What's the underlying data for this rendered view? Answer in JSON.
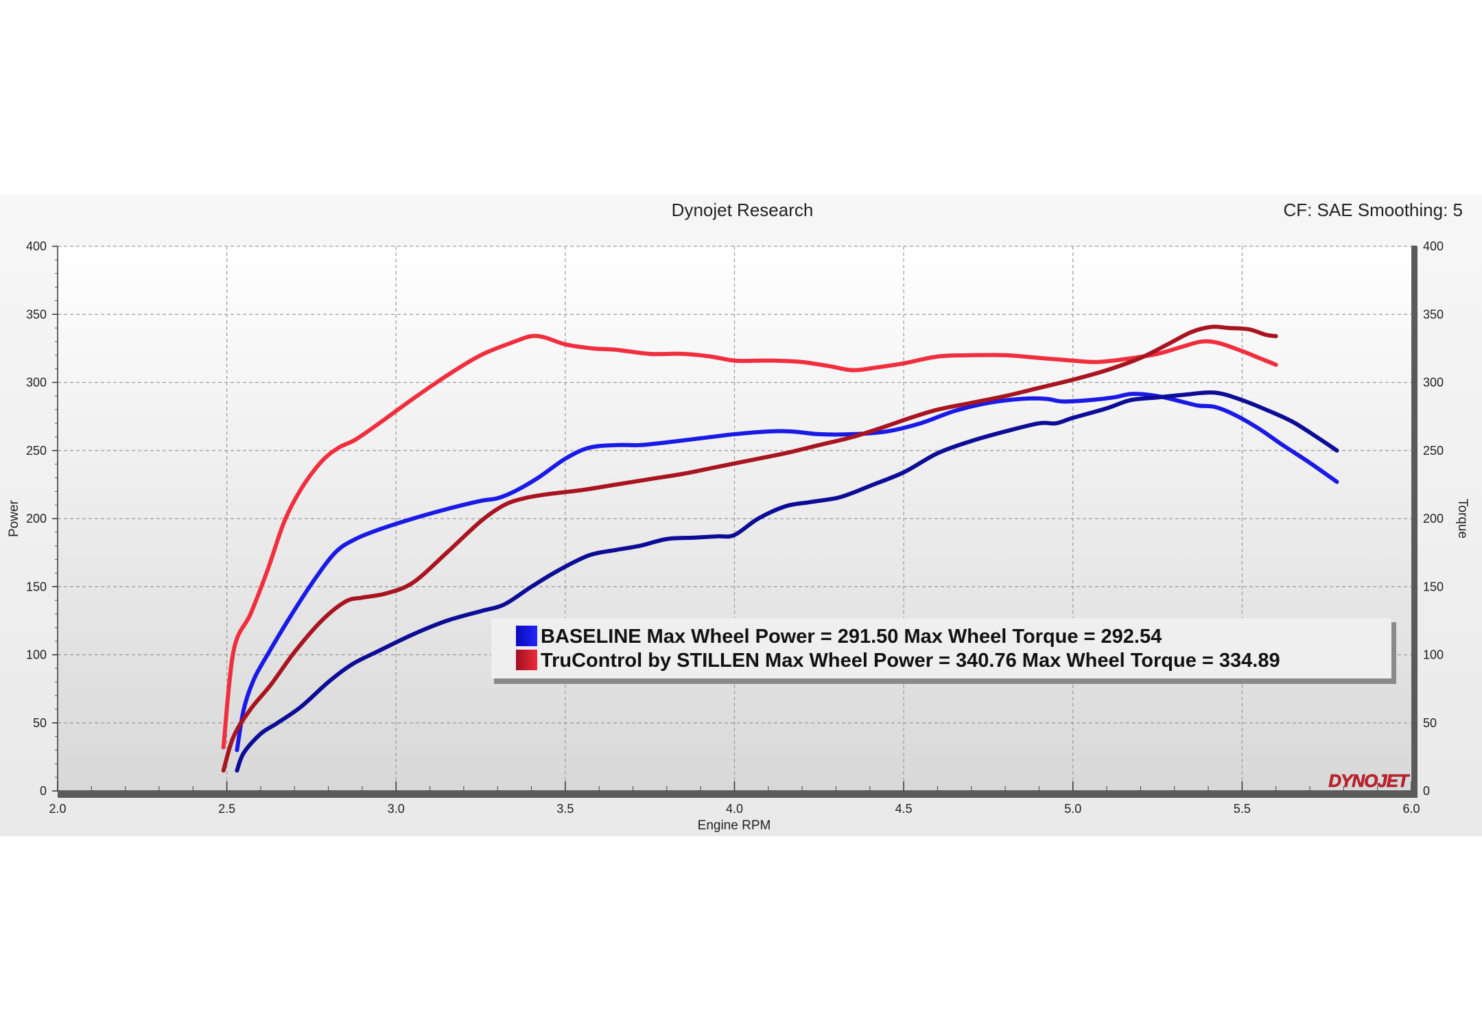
{
  "header": {
    "title": "Dynojet Research",
    "settings": "CF: SAE Smoothing: 5"
  },
  "watermark": "DYNOJET",
  "chart_data": {
    "type": "line",
    "title": "Dynojet Research",
    "xlabel": "Engine RPM",
    "ylabel_left": "Power",
    "ylabel_right": "Torque",
    "xlim": [
      2.0,
      6.0
    ],
    "ylim": [
      0,
      400
    ],
    "xticks": [
      "2.0",
      "2.5",
      "3.0",
      "3.5",
      "4.0",
      "4.5",
      "5.0",
      "5.5",
      "6.0"
    ],
    "yticks": [
      "0",
      "50",
      "100",
      "150",
      "200",
      "250",
      "300",
      "350",
      "400"
    ],
    "grid": true,
    "legend_position": "bottom-right",
    "legend": [
      {
        "text": "BASELINE Max Wheel Power = 291.50 Max Wheel Torque = 292.54",
        "colors": [
          "#0a0ab8",
          "#1f1fff"
        ]
      },
      {
        "text": "TruControl by STILLEN Max Wheel Power = 340.76 Max Wheel Torque = 334.89",
        "colors": [
          "#a01020",
          "#ee2a3c"
        ]
      }
    ],
    "series": [
      {
        "color": "#1a1ae6",
        "x": [
          2.53,
          2.55,
          2.58,
          2.62,
          2.68,
          2.75,
          2.82,
          2.88,
          2.95,
          3.05,
          3.15,
          3.25,
          3.3,
          3.35,
          3.42,
          3.5,
          3.57,
          3.65,
          3.72,
          3.8,
          3.9,
          4.0,
          4.1,
          4.17,
          4.25,
          4.35,
          4.45,
          4.55,
          4.65,
          4.75,
          4.85,
          4.92,
          4.97,
          5.05,
          5.12,
          5.17,
          5.22,
          5.27,
          5.32,
          5.37,
          5.42,
          5.48,
          5.55,
          5.62,
          5.7,
          5.78
        ],
        "values": [
          30,
          60,
          82,
          100,
          125,
          152,
          175,
          185,
          192,
          200,
          207,
          213,
          215,
          220,
          230,
          244,
          252,
          254,
          254,
          256,
          259,
          262,
          264,
          264,
          262,
          262,
          264,
          270,
          279,
          285,
          288,
          288,
          286,
          287,
          289,
          291.5,
          291,
          289,
          286,
          283,
          282,
          276,
          266,
          254,
          241,
          227
        ]
      },
      {
        "color": "#0c0c96",
        "x": [
          2.53,
          2.55,
          2.6,
          2.65,
          2.72,
          2.8,
          2.87,
          2.95,
          3.05,
          3.15,
          3.25,
          3.32,
          3.4,
          3.48,
          3.57,
          3.65,
          3.72,
          3.8,
          3.88,
          3.95,
          4.0,
          4.07,
          4.15,
          4.22,
          4.3,
          4.35,
          4.4,
          4.5,
          4.6,
          4.7,
          4.8,
          4.9,
          4.95,
          5.0,
          5.1,
          5.17,
          5.25,
          5.33,
          5.42,
          5.5,
          5.58,
          5.65,
          5.72,
          5.78
        ],
        "values": [
          15,
          28,
          42,
          50,
          62,
          80,
          93,
          103,
          115,
          125,
          132,
          137,
          150,
          162,
          173,
          177,
          180,
          185,
          186,
          187,
          188,
          200,
          209,
          212,
          215,
          219,
          224,
          234,
          248,
          257,
          264,
          270,
          270,
          274,
          281,
          287,
          289,
          291,
          292.5,
          287,
          279,
          271,
          260,
          250
        ]
      },
      {
        "color": "#f02e3e",
        "x": [
          2.49,
          2.52,
          2.57,
          2.62,
          2.67,
          2.72,
          2.78,
          2.83,
          2.88,
          2.95,
          3.05,
          3.15,
          3.25,
          3.35,
          3.4,
          3.44,
          3.5,
          3.58,
          3.65,
          3.75,
          3.85,
          3.93,
          4.0,
          4.07,
          4.12,
          4.2,
          4.28,
          4.35,
          4.42,
          4.5,
          4.6,
          4.7,
          4.8,
          4.9,
          5.0,
          5.07,
          5.15,
          5.25,
          5.32,
          5.38,
          5.43,
          5.5,
          5.55,
          5.6
        ],
        "values": [
          32,
          103,
          130,
          162,
          198,
          222,
          242,
          252,
          258,
          270,
          288,
          305,
          320,
          330,
          334,
          333,
          328,
          325,
          324,
          321,
          321,
          319,
          316,
          316,
          316,
          315,
          312,
          309,
          311,
          314,
          319,
          320,
          320,
          318,
          316,
          315,
          317,
          321,
          326,
          330,
          329,
          323,
          318,
          313
        ]
      },
      {
        "color": "#a8141f",
        "x": [
          2.49,
          2.52,
          2.57,
          2.63,
          2.7,
          2.78,
          2.85,
          2.9,
          2.97,
          3.05,
          3.15,
          3.25,
          3.32,
          3.38,
          3.45,
          3.55,
          3.65,
          3.75,
          3.85,
          3.95,
          4.05,
          4.15,
          4.25,
          4.35,
          4.45,
          4.52,
          4.6,
          4.7,
          4.8,
          4.9,
          5.0,
          5.1,
          5.2,
          5.28,
          5.35,
          5.41,
          5.46,
          5.52,
          5.57,
          5.6
        ],
        "values": [
          15,
          40,
          60,
          78,
          102,
          125,
          139,
          142,
          145,
          153,
          175,
          198,
          210,
          215,
          218,
          221,
          225,
          229,
          233,
          238,
          243,
          248,
          254,
          260,
          268,
          274,
          280,
          285,
          290,
          296,
          302,
          309,
          318,
          328,
          337,
          340.8,
          340,
          339,
          335,
          334
        ]
      }
    ]
  }
}
